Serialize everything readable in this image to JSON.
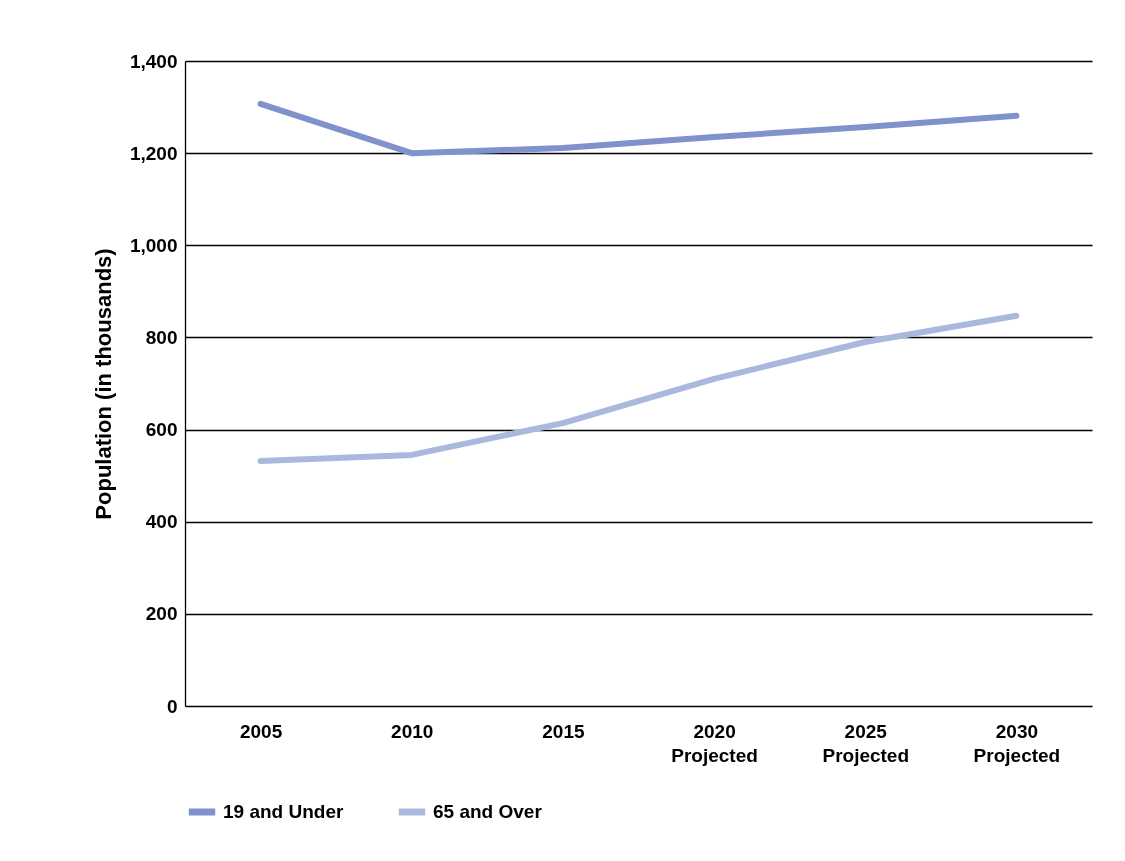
{
  "chart_data": {
    "type": "line",
    "ylabel": "Population (in thousands)",
    "categories": [
      "2005",
      "2010",
      "2015",
      "2020 Projected",
      "2025 Projected",
      "2030 Projected"
    ],
    "series": [
      {
        "name": "19 and Under",
        "color": "#7f92cc",
        "values": [
          1307,
          1200,
          1211,
          1235,
          1257,
          1281
        ]
      },
      {
        "name": "65 and Over",
        "color": "#abb8de",
        "values": [
          532,
          545,
          614,
          710,
          790,
          847
        ]
      }
    ],
    "ylim": [
      0,
      1400
    ],
    "yticks": [
      {
        "value": 0,
        "label": "0"
      },
      {
        "value": 200,
        "label": "200"
      },
      {
        "value": 400,
        "label": "400"
      },
      {
        "value": 600,
        "label": "600"
      },
      {
        "value": 800,
        "label": "800"
      },
      {
        "value": 1000,
        "label": "1,000"
      },
      {
        "value": 1200,
        "label": "1,200"
      },
      {
        "value": 1400,
        "label": "1,400"
      }
    ],
    "grid": "y",
    "legend": "bottom",
    "marker": "none",
    "line_style": "solid"
  }
}
